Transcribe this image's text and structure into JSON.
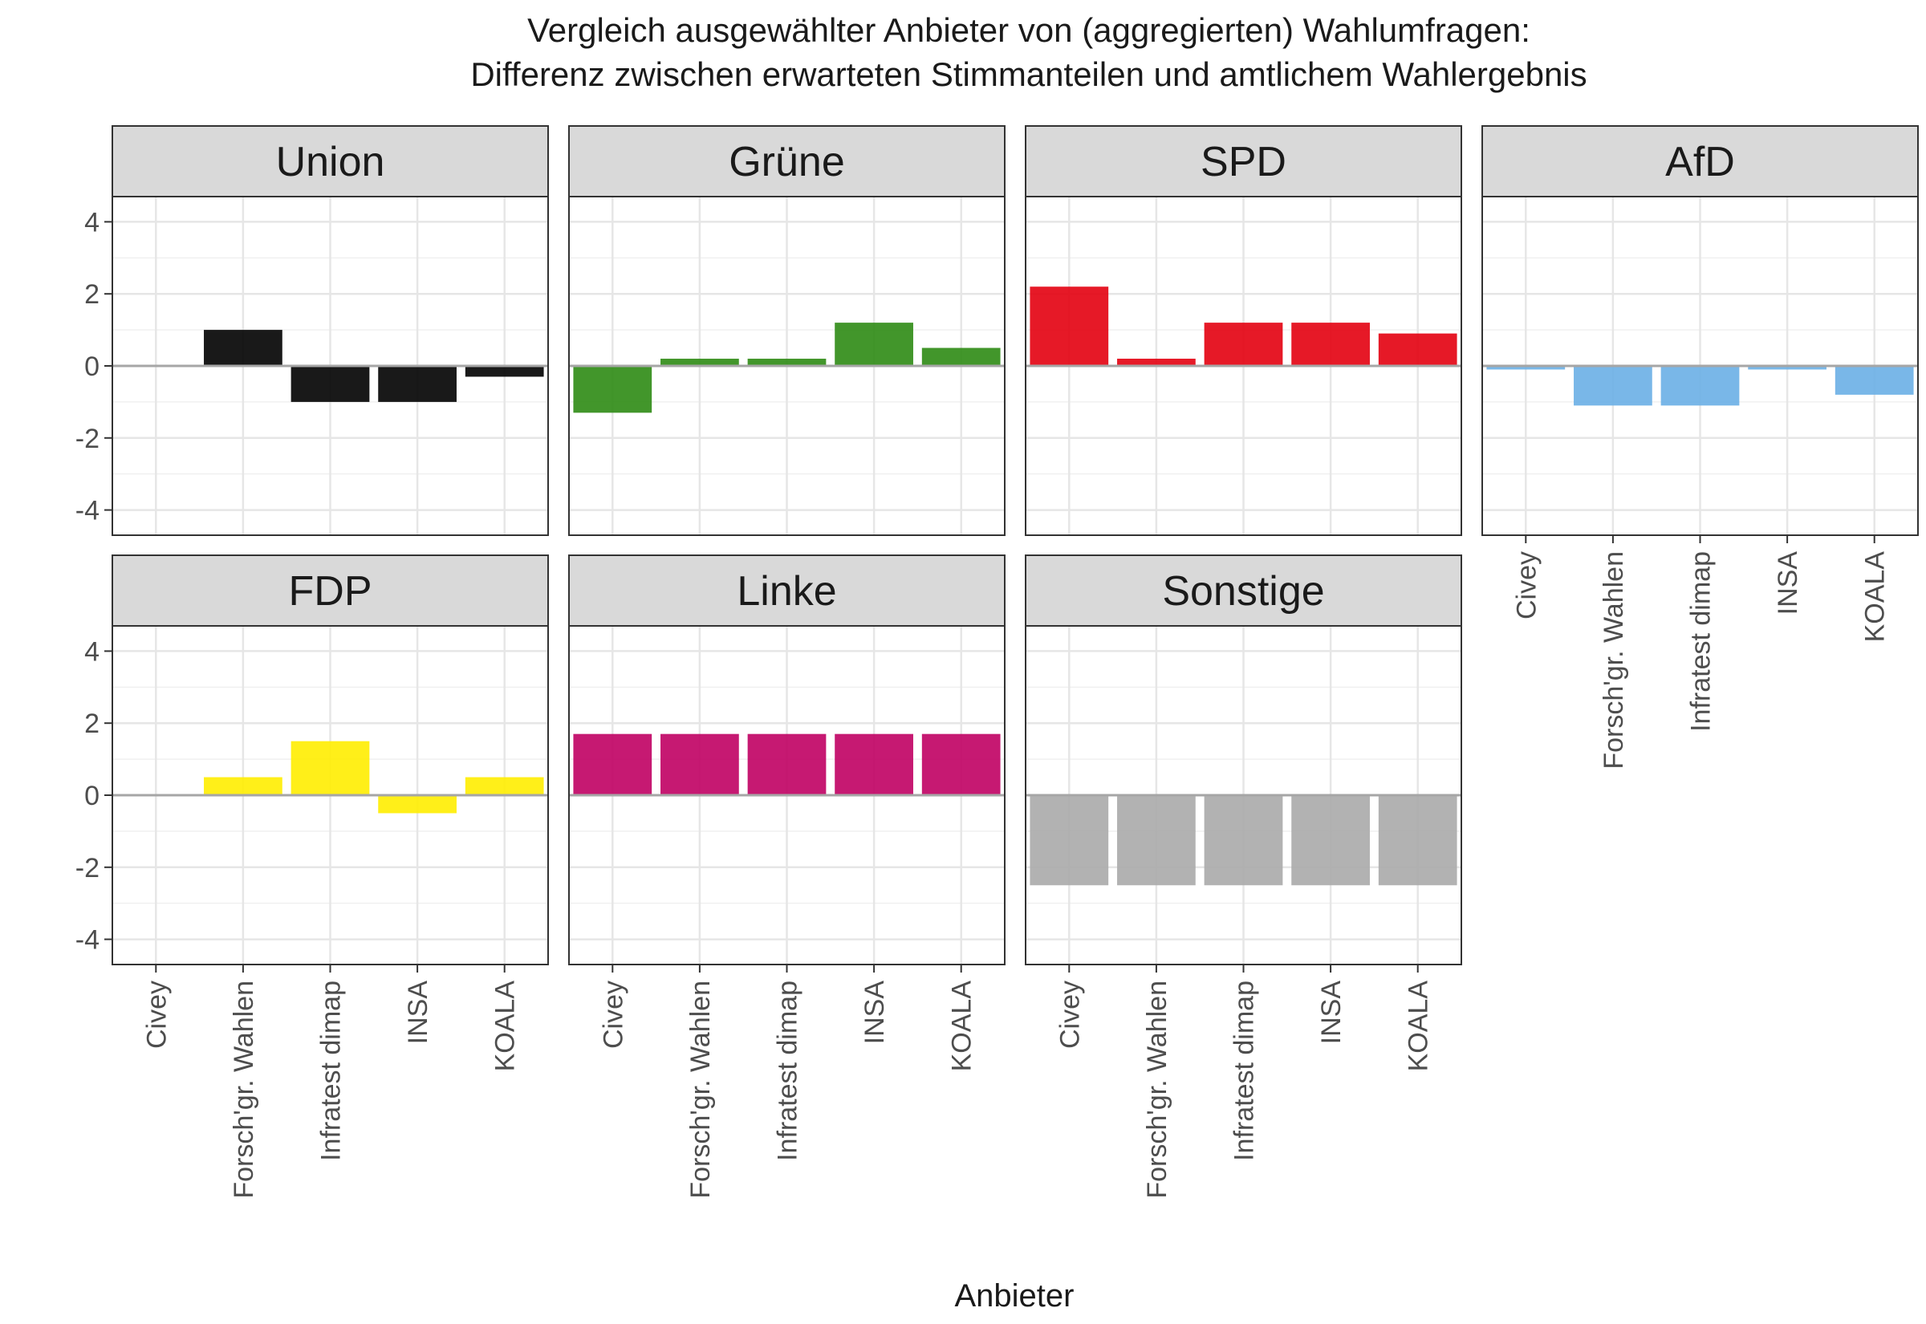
{
  "chart_data": {
    "type": "bar",
    "title": [
      "Vergleich ausgewählter Anbieter von (aggregierten) Wahlumfragen:",
      "Differenz zwischen erwarteten Stimmanteilen und amtlichem Wahlergebnis"
    ],
    "xlabel": "Anbieter",
    "ylabel": "",
    "ylim": [
      -4.7,
      4.7
    ],
    "yticks": [
      4,
      2,
      0,
      -2,
      -4
    ],
    "ytick_labels": [
      "4",
      "2",
      "0",
      "-2",
      "-4"
    ],
    "grid": true,
    "categories": [
      "Civey",
      "Forsch'gr. Wahlen",
      "Infratest dimap",
      "INSA",
      "KOALA"
    ],
    "facets": [
      {
        "name": "Union",
        "color": "#000000",
        "values": [
          0.0,
          1.0,
          -1.0,
          -1.0,
          -0.3
        ]
      },
      {
        "name": "Grüne",
        "color": "#2e8b14",
        "values": [
          -1.3,
          0.2,
          0.2,
          1.2,
          0.5
        ]
      },
      {
        "name": "SPD",
        "color": "#e3000f",
        "values": [
          2.2,
          0.2,
          1.2,
          1.2,
          0.9
        ]
      },
      {
        "name": "AfD",
        "color": "#6aafe6",
        "values": [
          -0.1,
          -1.1,
          -1.1,
          -0.1,
          -0.8
        ]
      },
      {
        "name": "FDP",
        "color": "#ffed00",
        "values": [
          0.0,
          0.5,
          1.5,
          -0.5,
          0.5
        ]
      },
      {
        "name": "Linke",
        "color": "#c00063",
        "values": [
          1.7,
          1.7,
          1.7,
          1.7,
          1.7
        ]
      },
      {
        "name": "Sonstige",
        "color": "#aaaaaa",
        "values": [
          -2.5,
          -2.5,
          -2.5,
          -2.5,
          -2.5
        ]
      }
    ]
  }
}
